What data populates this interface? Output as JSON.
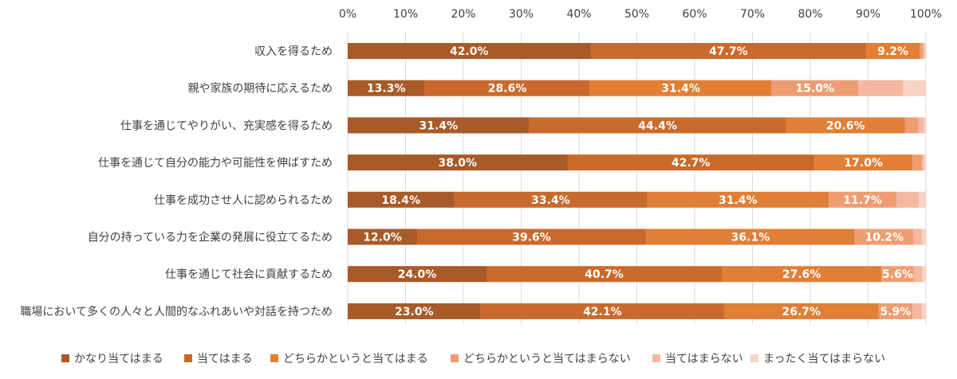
{
  "chart_data": {
    "type": "bar",
    "orientation": "horizontal",
    "stacked": true,
    "percent_stacked": true,
    "xlim": [
      0,
      100
    ],
    "x_ticks": [
      "0%",
      "10%",
      "20%",
      "30%",
      "40%",
      "50%",
      "60%",
      "70%",
      "80%",
      "90%",
      "100%"
    ],
    "grid": true,
    "legend_position": "bottom",
    "title": "",
    "xlabel": "",
    "ylabel": "",
    "categories": [
      "収入を得るため",
      "親や家族の期待に応えるため",
      "仕事を通じてやりがい、充実感を得るため",
      "仕事を通じて自分の能力や可能性を伸ばすため",
      "仕事を成功させ人に認められるため",
      "自分の持っている力を企業の発展に役立てるため",
      "仕事を通じて社会に貢献するため",
      "職場において多くの人々と人間的なふれあいや対話を持つため"
    ],
    "series": [
      {
        "name": "かなり当てはまる",
        "color": "#A85A28",
        "values": [
          42.0,
          13.3,
          31.4,
          38.0,
          18.4,
          12.0,
          24.0,
          23.0
        ]
      },
      {
        "name": "当てはまる",
        "color": "#C96A2C",
        "values": [
          47.7,
          28.6,
          44.4,
          42.7,
          33.4,
          39.6,
          40.7,
          42.1
        ]
      },
      {
        "name": "どちらかというと当てはまる",
        "color": "#E07F35",
        "values": [
          9.2,
          31.4,
          20.6,
          17.0,
          31.4,
          36.1,
          27.6,
          26.7
        ]
      },
      {
        "name": "どちらかというと当てはまらない",
        "color": "#EE9D72",
        "values": [
          0.6,
          15.0,
          2.3,
          1.6,
          11.7,
          10.2,
          5.6,
          5.9
        ]
      },
      {
        "name": "当てはまらない",
        "color": "#F4B8A0",
        "values": [
          0.3,
          7.8,
          1.0,
          0.4,
          3.9,
          1.4,
          1.5,
          1.6
        ]
      },
      {
        "name": "まったく当てはまらない",
        "color": "#F8D3C3",
        "values": [
          0.2,
          3.9,
          0.3,
          0.3,
          1.2,
          0.7,
          0.6,
          0.7
        ]
      }
    ],
    "data_labels": [
      [
        "42.0%",
        "47.7%",
        "9.2%",
        "",
        "",
        ""
      ],
      [
        "13.3%",
        "28.6%",
        "31.4%",
        "15.0%",
        "",
        ""
      ],
      [
        "31.4%",
        "44.4%",
        "20.6%",
        "",
        "",
        ""
      ],
      [
        "38.0%",
        "42.7%",
        "17.0%",
        "",
        "",
        ""
      ],
      [
        "18.4%",
        "33.4%",
        "31.4%",
        "11.7%",
        "",
        ""
      ],
      [
        "12.0%",
        "39.6%",
        "36.1%",
        "10.2%",
        "",
        ""
      ],
      [
        "24.0%",
        "40.7%",
        "27.6%",
        "5.6%",
        "",
        ""
      ],
      [
        "23.0%",
        "42.1%",
        "26.7%",
        "5.9%",
        "",
        ""
      ]
    ]
  }
}
